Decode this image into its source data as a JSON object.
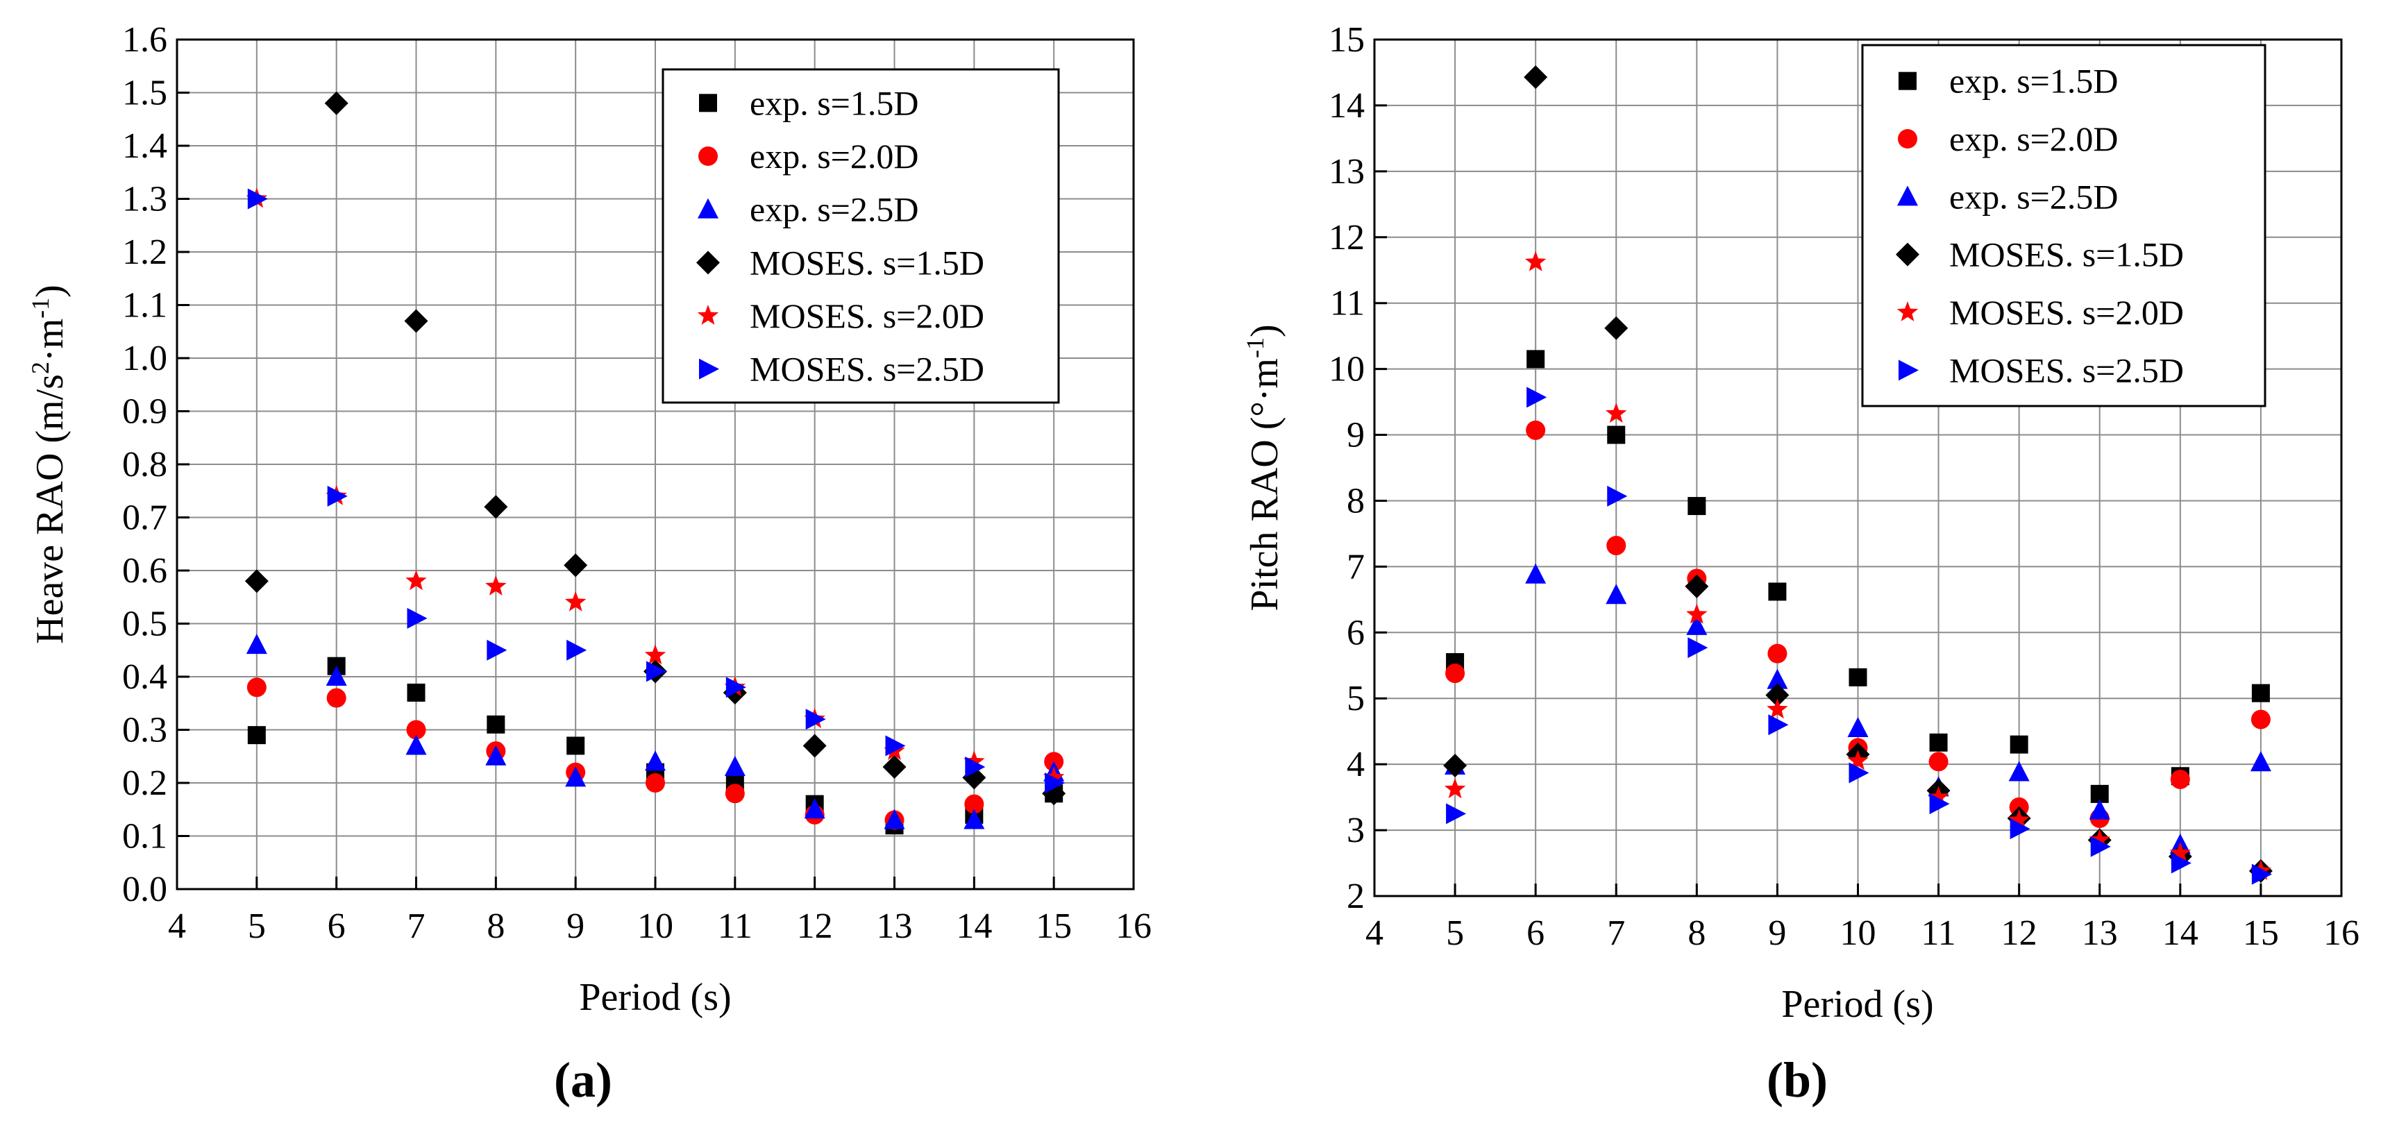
{
  "chart_data": [
    {
      "type": "scatter",
      "panel_label": "(a)",
      "xlabel": "Period (s)",
      "ylabel_prefix": "Heave RAO (m/s",
      "ylabel_sup1": "2",
      "ylabel_mid": "·m",
      "ylabel_sup2": "-1",
      "ylabel_suffix": ")",
      "xlim": [
        4,
        16
      ],
      "ylim": [
        0,
        1.6
      ],
      "xticks": [
        "4",
        "5",
        "6",
        "7",
        "8",
        "9",
        "10",
        "11",
        "12",
        "13",
        "14",
        "15",
        "16"
      ],
      "yticks": [
        "0.0",
        "0.1",
        "0.2",
        "0.3",
        "0.4",
        "0.5",
        "0.6",
        "0.7",
        "0.8",
        "0.9",
        "1.0",
        "1.1",
        "1.2",
        "1.3",
        "1.4",
        "1.5",
        "1.6"
      ],
      "grid": true,
      "legend_position": "top-right",
      "x": [
        5,
        6,
        7,
        8,
        9,
        10,
        11,
        12,
        13,
        14,
        15
      ],
      "series": [
        {
          "name": "exp. s=1.5D",
          "marker": "square",
          "color": "#000000",
          "values": [
            0.29,
            0.42,
            0.37,
            0.31,
            0.27,
            0.22,
            0.2,
            0.16,
            0.12,
            0.14,
            0.18
          ]
        },
        {
          "name": "exp. s=2.0D",
          "marker": "circle",
          "color": "#ff0000",
          "values": [
            0.38,
            0.36,
            0.3,
            0.26,
            0.22,
            0.2,
            0.18,
            0.14,
            0.13,
            0.16,
            0.24
          ]
        },
        {
          "name": "exp. s=2.5D",
          "marker": "triangle-up",
          "color": "#0000ff",
          "values": [
            0.46,
            0.4,
            0.27,
            0.25,
            0.21,
            0.24,
            0.23,
            0.15,
            0.13,
            0.13,
            0.22
          ]
        },
        {
          "name": "MOSES. s=1.5D",
          "marker": "diamond",
          "color": "#000000",
          "values": [
            0.58,
            1.48,
            1.07,
            0.72,
            0.61,
            0.41,
            0.37,
            0.27,
            0.23,
            0.21,
            0.18
          ]
        },
        {
          "name": "MOSES. s=2.0D",
          "marker": "star",
          "color": "#ff0000",
          "values": [
            1.3,
            0.74,
            0.58,
            0.57,
            0.54,
            0.44,
            0.38,
            0.32,
            0.26,
            0.24,
            0.21
          ]
        },
        {
          "name": "MOSES. s=2.5D",
          "marker": "triangle-right",
          "color": "#0000ff",
          "values": [
            1.3,
            0.74,
            0.51,
            0.45,
            0.45,
            0.41,
            0.38,
            0.32,
            0.27,
            0.23,
            0.2
          ]
        }
      ]
    },
    {
      "type": "scatter",
      "panel_label": "(b)",
      "xlabel": "Period (s)",
      "ylabel_prefix": "Pitch RAO (°·m",
      "ylabel_sup1": "",
      "ylabel_mid": "",
      "ylabel_sup2": "-1",
      "ylabel_suffix": ")",
      "xlim": [
        4,
        16
      ],
      "ylim": [
        2,
        15
      ],
      "xticks": [
        "4",
        "5",
        "6",
        "7",
        "8",
        "9",
        "10",
        "11",
        "12",
        "13",
        "14",
        "15",
        "16"
      ],
      "yticks": [
        "2",
        "3",
        "4",
        "5",
        "6",
        "7",
        "8",
        "9",
        "10",
        "11",
        "12",
        "13",
        "14",
        "15"
      ],
      "grid": true,
      "legend_position": "top-right",
      "x": [
        5,
        6,
        7,
        8,
        9,
        10,
        11,
        12,
        13,
        14,
        15
      ],
      "series": [
        {
          "name": "exp. s=1.5D",
          "marker": "square",
          "color": "#000000",
          "values": [
            5.55,
            10.15,
            9.0,
            7.92,
            6.62,
            5.32,
            4.33,
            4.3,
            3.55,
            3.82,
            5.08
          ]
        },
        {
          "name": "exp. s=2.0D",
          "marker": "circle",
          "color": "#ff0000",
          "values": [
            5.38,
            9.07,
            7.32,
            6.82,
            5.68,
            4.25,
            4.04,
            3.35,
            3.18,
            3.77,
            4.68
          ]
        },
        {
          "name": "exp. s=2.5D",
          "marker": "triangle-up",
          "color": "#0000ff",
          "values": [
            3.98,
            6.88,
            6.57,
            6.1,
            5.28,
            4.55,
            3.65,
            3.88,
            3.3,
            2.78,
            4.03
          ]
        },
        {
          "name": "MOSES. s=1.5D",
          "marker": "diamond",
          "color": "#000000",
          "values": [
            3.98,
            14.43,
            10.62,
            6.7,
            5.05,
            4.15,
            3.6,
            3.18,
            2.85,
            2.6,
            2.38
          ]
        },
        {
          "name": "MOSES. s=2.0D",
          "marker": "star",
          "color": "#ff0000",
          "values": [
            3.62,
            11.62,
            9.32,
            6.27,
            4.83,
            4.05,
            3.5,
            3.15,
            2.85,
            2.65,
            2.38
          ]
        },
        {
          "name": "MOSES. s=2.5D",
          "marker": "triangle-right",
          "color": "#0000ff",
          "values": [
            3.25,
            9.57,
            8.07,
            5.77,
            4.6,
            3.87,
            3.4,
            3.02,
            2.75,
            2.5,
            2.33
          ]
        }
      ]
    }
  ]
}
